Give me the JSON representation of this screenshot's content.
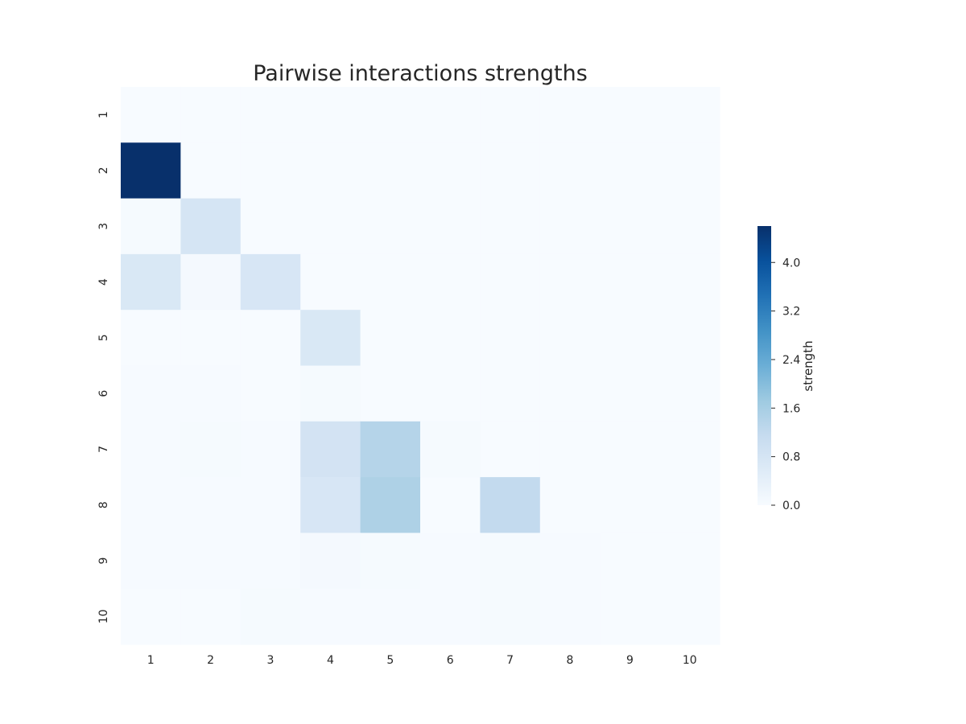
{
  "chart_data": {
    "type": "heatmap",
    "title": "Pairwise interactions strengths",
    "xlabel": "",
    "ylabel": "",
    "x_categories": [
      "1",
      "2",
      "3",
      "4",
      "5",
      "6",
      "7",
      "8",
      "9",
      "10"
    ],
    "y_categories": [
      "1",
      "2",
      "3",
      "4",
      "5",
      "6",
      "7",
      "8",
      "9",
      "10"
    ],
    "values": [
      [
        0.0,
        0.0,
        0.0,
        0.0,
        0.0,
        0.0,
        0.0,
        0.0,
        0.0,
        0.0
      ],
      [
        4.8,
        0.0,
        0.0,
        0.0,
        0.0,
        0.0,
        0.0,
        0.0,
        0.0,
        0.0
      ],
      [
        0.05,
        0.8,
        0.0,
        0.0,
        0.0,
        0.0,
        0.0,
        0.0,
        0.0,
        0.0
      ],
      [
        0.7,
        0.06,
        0.75,
        0.0,
        0.0,
        0.0,
        0.0,
        0.0,
        0.0,
        0.0
      ],
      [
        0.01,
        0.01,
        0.01,
        0.7,
        0.0,
        0.0,
        0.0,
        0.0,
        0.0,
        0.0
      ],
      [
        0.02,
        0.02,
        0.01,
        0.04,
        0.0,
        0.0,
        0.0,
        0.0,
        0.0,
        0.0
      ],
      [
        0.03,
        0.04,
        0.02,
        0.85,
        1.4,
        0.05,
        0.0,
        0.0,
        0.0,
        0.0
      ],
      [
        0.03,
        0.02,
        0.02,
        0.75,
        1.5,
        0.0,
        1.2,
        0.0,
        0.0,
        0.0
      ],
      [
        0.03,
        0.02,
        0.02,
        0.08,
        0.05,
        0.02,
        0.04,
        0.03,
        0.0,
        0.0
      ],
      [
        0.01,
        0.01,
        0.04,
        0.03,
        0.03,
        0.02,
        0.04,
        0.03,
        0.0,
        0.0
      ]
    ],
    "colorbar": {
      "label": "strength",
      "ticks": [
        "0.0",
        "0.8",
        "1.6",
        "2.4",
        "3.2",
        "4.0"
      ],
      "range": [
        0,
        4.6
      ],
      "colormap": "Blues",
      "colors": [
        "#f7fbff",
        "#deebf7",
        "#c6dbef",
        "#9ecae1",
        "#6baed6",
        "#4292c6",
        "#2171b5",
        "#08519c",
        "#08306b"
      ]
    },
    "grid": false
  }
}
